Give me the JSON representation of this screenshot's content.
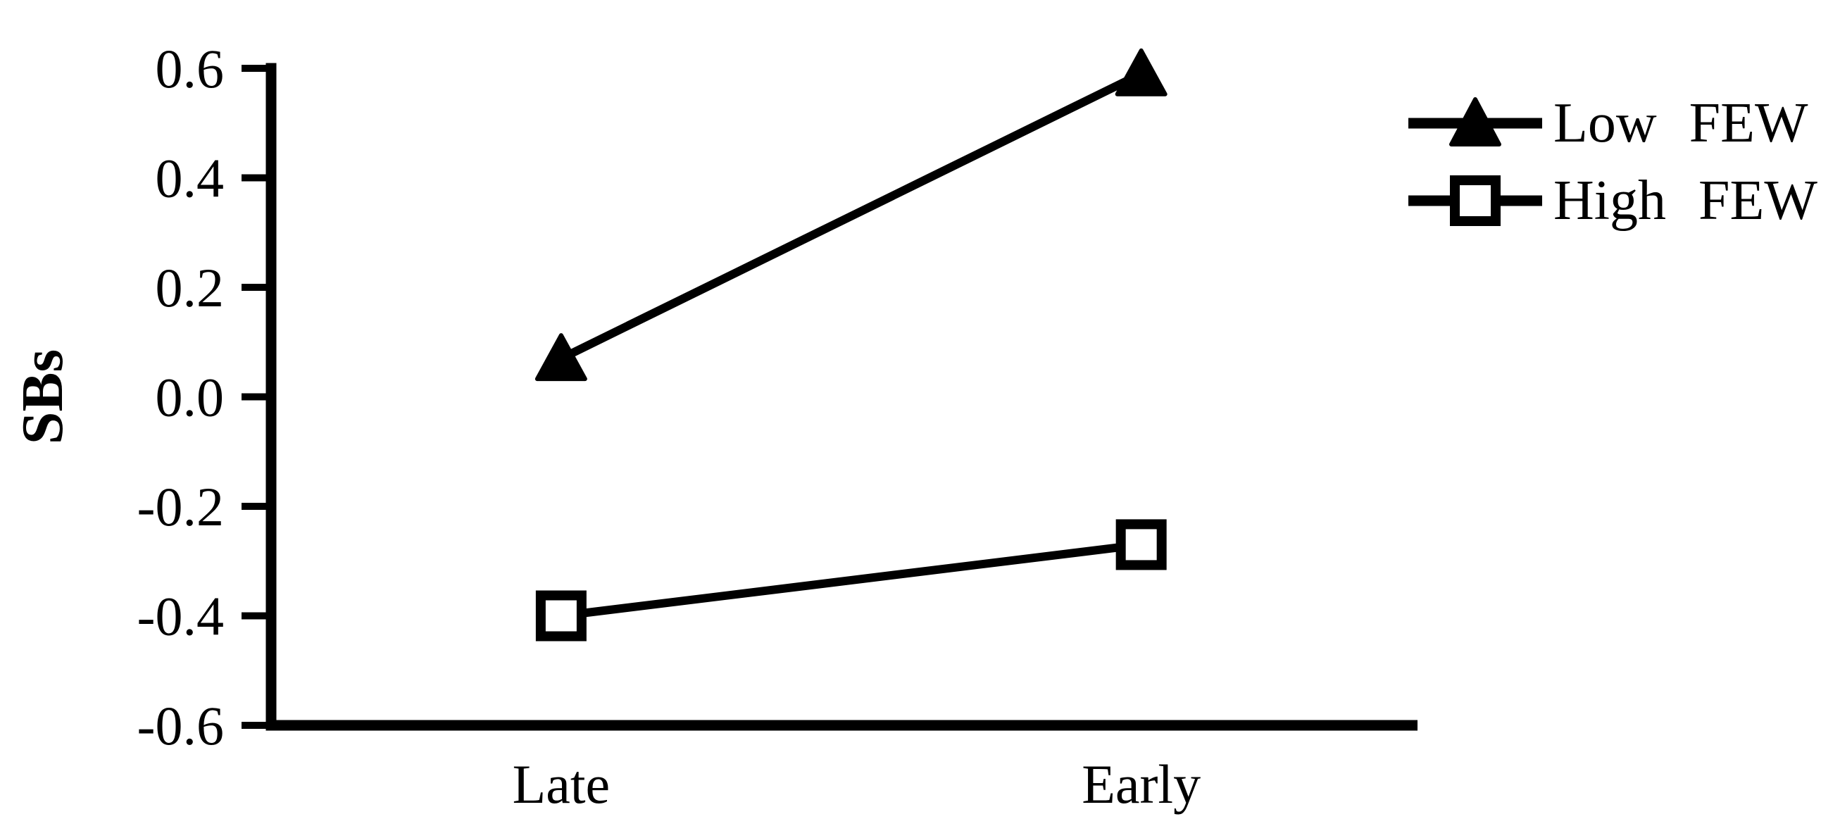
{
  "figure": {
    "background_color": "#ffffff",
    "ink_color": "#000000"
  },
  "chart_data": {
    "type": "line",
    "title": "",
    "categories": [
      "Late",
      "Early"
    ],
    "series": [
      {
        "name": "Low FEW",
        "marker": "filled-triangle",
        "color": "#000000",
        "values": [
          0.07,
          0.59
        ]
      },
      {
        "name": "High FEW",
        "marker": "open-square",
        "color": "#000000",
        "values": [
          -0.4,
          -0.27
        ]
      }
    ],
    "xlabel": "",
    "ylabel": "SBs",
    "ylim": [
      -0.6,
      0.6
    ],
    "yticks": [
      {
        "value": 0.6,
        "label": "0.6"
      },
      {
        "value": 0.4,
        "label": "0.4"
      },
      {
        "value": 0.2,
        "label": "0.2"
      },
      {
        "value": 0.0,
        "label": "0.0"
      },
      {
        "value": -0.2,
        "label": "-0.2"
      },
      {
        "value": -0.4,
        "label": "-0.4"
      },
      {
        "value": -0.6,
        "label": "-0.6"
      }
    ],
    "grid": false,
    "legend_position": "top-right"
  }
}
